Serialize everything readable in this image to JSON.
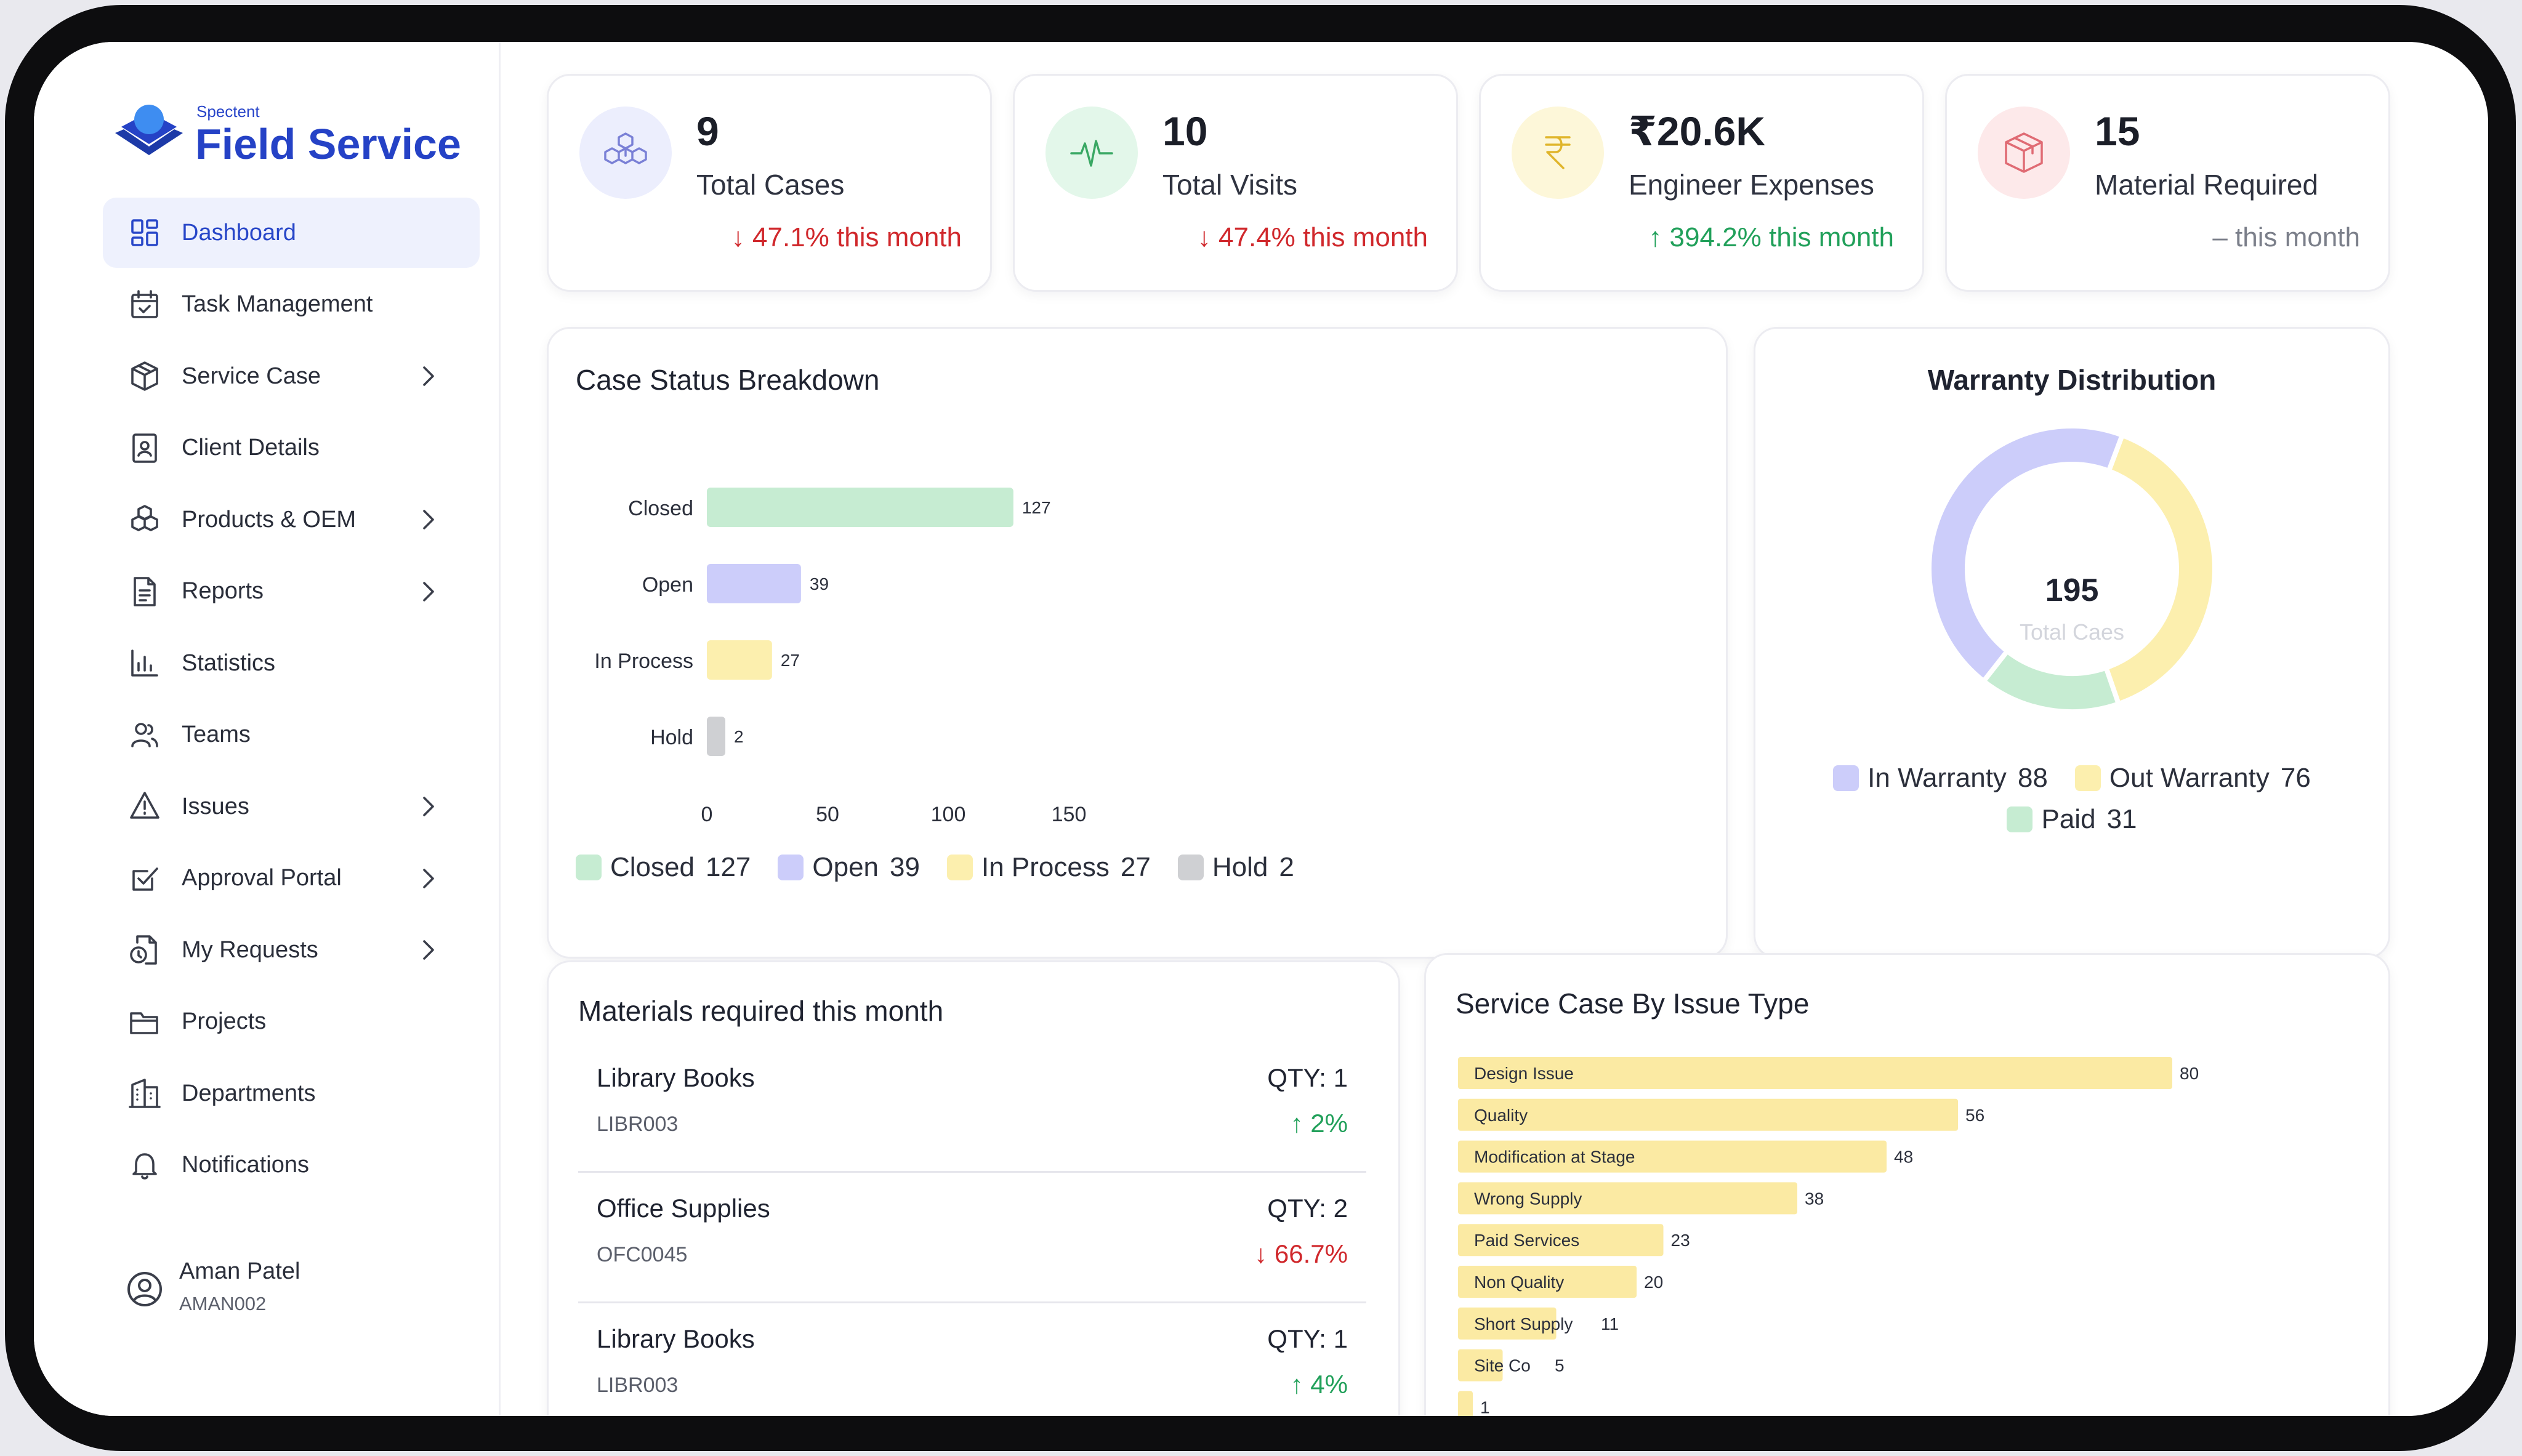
{
  "brand": {
    "company": "Spectent",
    "product": "Field Service"
  },
  "sidebar": {
    "items": [
      {
        "label": "Dashboard",
        "icon": "dashboard-grid-icon",
        "active": true,
        "chevron": false
      },
      {
        "label": "Task Management",
        "icon": "calendar-check-icon",
        "active": false,
        "chevron": false
      },
      {
        "label": "Service Case",
        "icon": "box-icon",
        "active": false,
        "chevron": true
      },
      {
        "label": "Client Details",
        "icon": "contact-card-icon",
        "active": false,
        "chevron": false
      },
      {
        "label": "Products & OEM",
        "icon": "boxes-icon",
        "active": false,
        "chevron": true
      },
      {
        "label": "Reports",
        "icon": "document-icon",
        "active": false,
        "chevron": true
      },
      {
        "label": "Statistics",
        "icon": "bar-chart-icon",
        "active": false,
        "chevron": false
      },
      {
        "label": "Teams",
        "icon": "users-icon",
        "active": false,
        "chevron": false
      },
      {
        "label": "Issues",
        "icon": "warning-triangle-icon",
        "active": false,
        "chevron": true
      },
      {
        "label": "Approval Portal",
        "icon": "checkbox-icon",
        "active": false,
        "chevron": true
      },
      {
        "label": "My Requests",
        "icon": "file-request-icon",
        "active": false,
        "chevron": true
      },
      {
        "label": "Projects",
        "icon": "folder-icon",
        "active": false,
        "chevron": false
      },
      {
        "label": "Departments",
        "icon": "building-icon",
        "active": false,
        "chevron": false
      },
      {
        "label": "Notifications",
        "icon": "bell-icon",
        "active": false,
        "chevron": false
      }
    ],
    "user": {
      "name": "Aman Patel",
      "id": "AMAN002"
    }
  },
  "stats": [
    {
      "value": "9",
      "label": "Total Cases",
      "delta": "↓ 47.1% this month",
      "trend": "down",
      "icon": "cubes-icon",
      "bg": "#eceefd",
      "fg": "#7a80d6"
    },
    {
      "value": "10",
      "label": "Total Visits",
      "delta": "↓ 47.4% this month",
      "trend": "down",
      "icon": "pulse-icon",
      "bg": "#e3f7ea",
      "fg": "#3aa864"
    },
    {
      "value": "₹20.6K",
      "label": "Engineer Expenses",
      "delta": "↑ 394.2% this month",
      "trend": "up",
      "icon": "rupee-icon",
      "bg": "#fdf7d9",
      "fg": "#e0b52b"
    },
    {
      "value": "15",
      "label": "Material Required",
      "delta": "– this month",
      "trend": "flat",
      "icon": "package-icon",
      "bg": "#fde9ea",
      "fg": "#e06b74"
    }
  ],
  "case_status": {
    "title": "Case Status Breakdown",
    "chart_data": {
      "type": "bar",
      "orientation": "horizontal",
      "categories": [
        "Closed",
        "Open",
        "In Process",
        "Hold"
      ],
      "values": [
        127,
        39,
        27,
        2
      ],
      "colors": [
        "#c6ecd2",
        "#cccdfa",
        "#fcefae",
        "#cfd0d3"
      ],
      "xticks": [
        0,
        50,
        100,
        150
      ],
      "xlim": [
        0,
        150
      ],
      "legend": [
        {
          "label": "Closed",
          "value": "127"
        },
        {
          "label": "Open",
          "value": "39"
        },
        {
          "label": "In Process",
          "value": "27"
        },
        {
          "label": "Hold",
          "value": "2"
        }
      ]
    }
  },
  "warranty": {
    "title": "Warranty Distribution",
    "total_value": "195",
    "total_label": "Total Caes",
    "chart_data": {
      "type": "pie",
      "donut": true,
      "labels": [
        "In Warranty",
        "Out Warranty",
        "Paid"
      ],
      "values": [
        88,
        76,
        31
      ],
      "colors": [
        "#cccdfa",
        "#fcefae",
        "#c6ecd2"
      ]
    },
    "legend": [
      {
        "label": "In Warranty",
        "value": "88"
      },
      {
        "label": "Out Warranty",
        "value": "76"
      },
      {
        "label": "Paid",
        "value": "31"
      }
    ]
  },
  "materials": {
    "title": "Materials required this month",
    "items": [
      {
        "name": "Library Books",
        "code": "LIBR003",
        "qty": "QTY: 1",
        "delta": "↑ 2%",
        "trend": "up"
      },
      {
        "name": "Office Supplies",
        "code": "OFC0045",
        "qty": "QTY: 2",
        "delta": "↓ 66.7%",
        "trend": "down"
      },
      {
        "name": "Library Books",
        "code": "LIBR003",
        "qty": "QTY: 1",
        "delta": "↑ 4%",
        "trend": "up"
      }
    ]
  },
  "issue_type": {
    "title": "Service Case By Issue Type",
    "chart_data": {
      "type": "bar",
      "orientation": "horizontal",
      "categories": [
        "Design Issue",
        "Quality",
        "Modification at Stage",
        "Wrong Supply",
        "Paid Services",
        "Non Quality",
        "Short Supply",
        "Site Co",
        ""
      ],
      "values": [
        80,
        56,
        48,
        38,
        23,
        20,
        11,
        5,
        1
      ],
      "color": "#fbeaa3"
    }
  }
}
